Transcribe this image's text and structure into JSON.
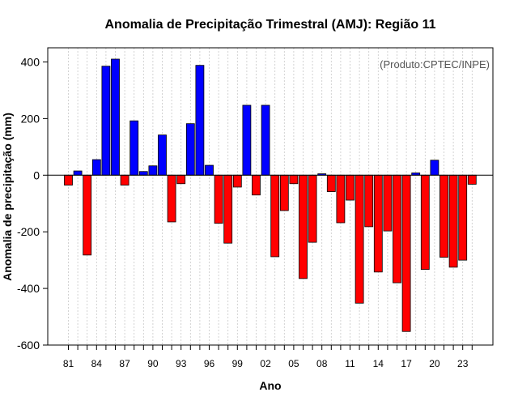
{
  "chart_data": {
    "type": "bar",
    "title": "Anomalia de Precipitação Trimestral (AMJ): Região 11",
    "xlabel": "Ano",
    "ylabel": "Anomalia de precipitação (mm)",
    "annotation": "(Produto:CPTEC/INPE)",
    "ylim": [
      -600,
      450
    ],
    "yticks": [
      -600,
      -400,
      -200,
      0,
      200,
      400
    ],
    "xtick_labels": [
      "81",
      "84",
      "87",
      "90",
      "93",
      "96",
      "99",
      "02",
      "05",
      "08",
      "11",
      "14",
      "17",
      "20",
      "23"
    ],
    "grid": true,
    "categories": [
      "1981",
      "1982",
      "1983",
      "1984",
      "1985",
      "1986",
      "1987",
      "1988",
      "1989",
      "1990",
      "1991",
      "1992",
      "1993",
      "1994",
      "1995",
      "1996",
      "1997",
      "1998",
      "1999",
      "2000",
      "2001",
      "2002",
      "2003",
      "2004",
      "2005",
      "2006",
      "2007",
      "2008",
      "2009",
      "2010",
      "2011",
      "2012",
      "2013",
      "2014",
      "2015",
      "2016",
      "2017",
      "2018",
      "2019",
      "2020",
      "2021",
      "2022",
      "2023",
      "2024"
    ],
    "values": [
      -35,
      15,
      -282,
      55,
      385,
      410,
      -35,
      192,
      13,
      33,
      142,
      -165,
      -30,
      182,
      388,
      35,
      -170,
      -240,
      -42,
      247,
      -70,
      247,
      -288,
      -125,
      -30,
      -365,
      -237,
      5,
      -58,
      -168,
      -88,
      -452,
      -182,
      -342,
      -197,
      -380,
      -552,
      8,
      -333,
      53,
      -290,
      -325,
      -300,
      -32
    ],
    "colors": {
      "positive": "#0000ff",
      "negative": "#ff0000",
      "grid": "#c8c8c8",
      "axis": "#000000"
    }
  }
}
